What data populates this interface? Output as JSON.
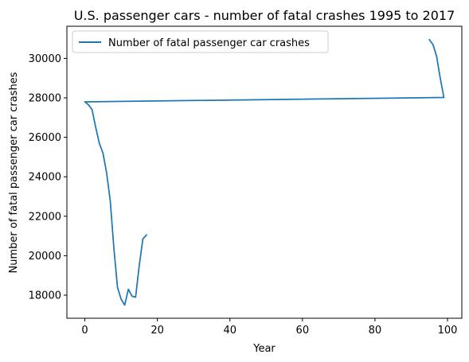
{
  "chart_data": {
    "type": "line",
    "title": "U.S. passenger cars - number of fatal crashes 1995 to 2017",
    "xlabel": "Year",
    "ylabel": "Number of fatal passenger car crashes",
    "xlim": [
      -4.95,
      103.95
    ],
    "ylim": [
      16830,
      31630
    ],
    "xticks": [
      0,
      20,
      40,
      60,
      80,
      100
    ],
    "yticks": [
      18000,
      20000,
      22000,
      24000,
      26000,
      28000,
      30000
    ],
    "legend": "upper-left",
    "grid": false,
    "series": [
      {
        "name": "Number of fatal passenger car crashes",
        "color": "#1f77b4",
        "x": [
          95,
          96,
          97,
          98,
          99,
          0,
          1,
          2,
          3,
          4,
          5,
          6,
          7,
          8,
          9,
          10,
          11,
          12,
          13,
          14,
          15,
          16,
          17
        ],
        "y": [
          30950,
          30700,
          30100,
          29000,
          28020,
          27800,
          27650,
          27400,
          26500,
          25700,
          25200,
          24200,
          22800,
          20400,
          18400,
          17800,
          17500,
          18300,
          17950,
          17900,
          19500,
          20850,
          21050
        ]
      }
    ]
  }
}
